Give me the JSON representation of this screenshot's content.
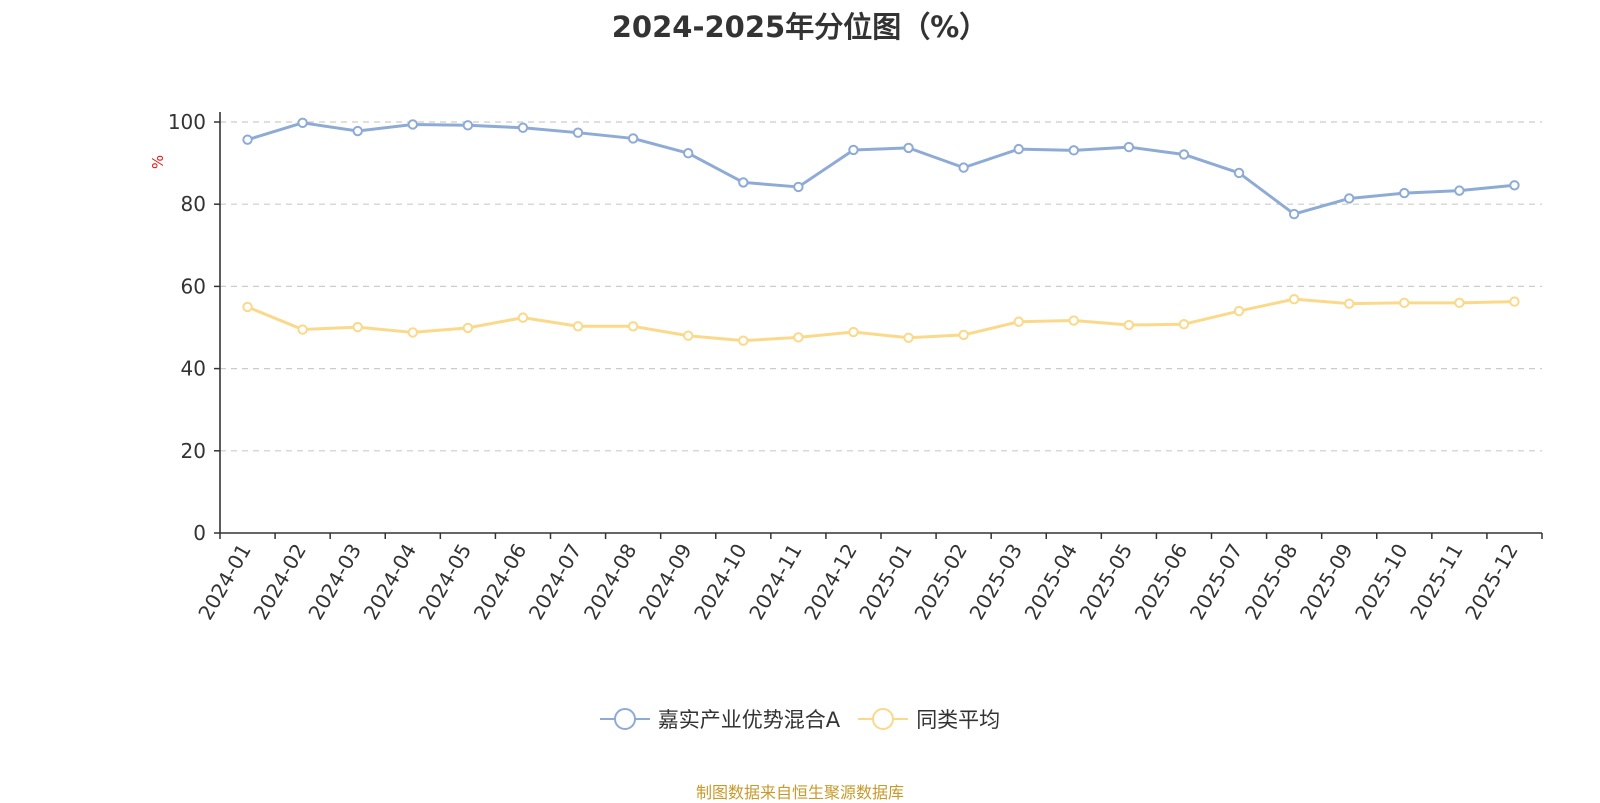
{
  "chart_data": {
    "type": "line",
    "title": "2024-2025年分位图（%）",
    "ylabel": "%",
    "xlabel": "",
    "ylim": [
      0,
      100
    ],
    "yticks": [
      0,
      20,
      40,
      60,
      80,
      100
    ],
    "grid": true,
    "legend_position": "bottom",
    "categories": [
      "2024-01",
      "2024-02",
      "2024-03",
      "2024-04",
      "2024-05",
      "2024-06",
      "2024-07",
      "2024-08",
      "2024-09",
      "2024-10",
      "2024-11",
      "2024-12",
      "2025-01",
      "2025-02",
      "2025-03",
      "2025-04",
      "2025-05",
      "2025-06",
      "2025-07",
      "2025-08",
      "2025-09",
      "2025-10",
      "2025-11",
      "2025-12"
    ],
    "series": [
      {
        "name": "嘉实产业优势混合A",
        "color": "#8eabd6",
        "values": [
          95.7,
          99.8,
          97.8,
          99.4,
          99.2,
          98.6,
          97.4,
          96.0,
          92.4,
          85.3,
          84.2,
          93.2,
          93.7,
          88.9,
          93.4,
          93.1,
          93.9,
          92.1,
          87.6,
          77.6,
          81.4,
          82.7,
          83.3,
          84.6
        ]
      },
      {
        "name": "同类平均",
        "color": "#fbd98b",
        "values": [
          55.0,
          49.5,
          50.1,
          48.8,
          49.9,
          52.4,
          50.3,
          50.3,
          48.0,
          46.8,
          47.6,
          48.9,
          47.5,
          48.2,
          51.4,
          51.7,
          50.6,
          50.8,
          54.0,
          56.9,
          55.8,
          56.0,
          56.0,
          56.3
        ]
      }
    ]
  },
  "footer": {
    "source": "制图数据来自恒生聚源数据库"
  },
  "colors": {
    "axis": "#333333",
    "grid": "#cccccc",
    "unit_label": "#e02020",
    "source_text": "#c89a2b"
  }
}
